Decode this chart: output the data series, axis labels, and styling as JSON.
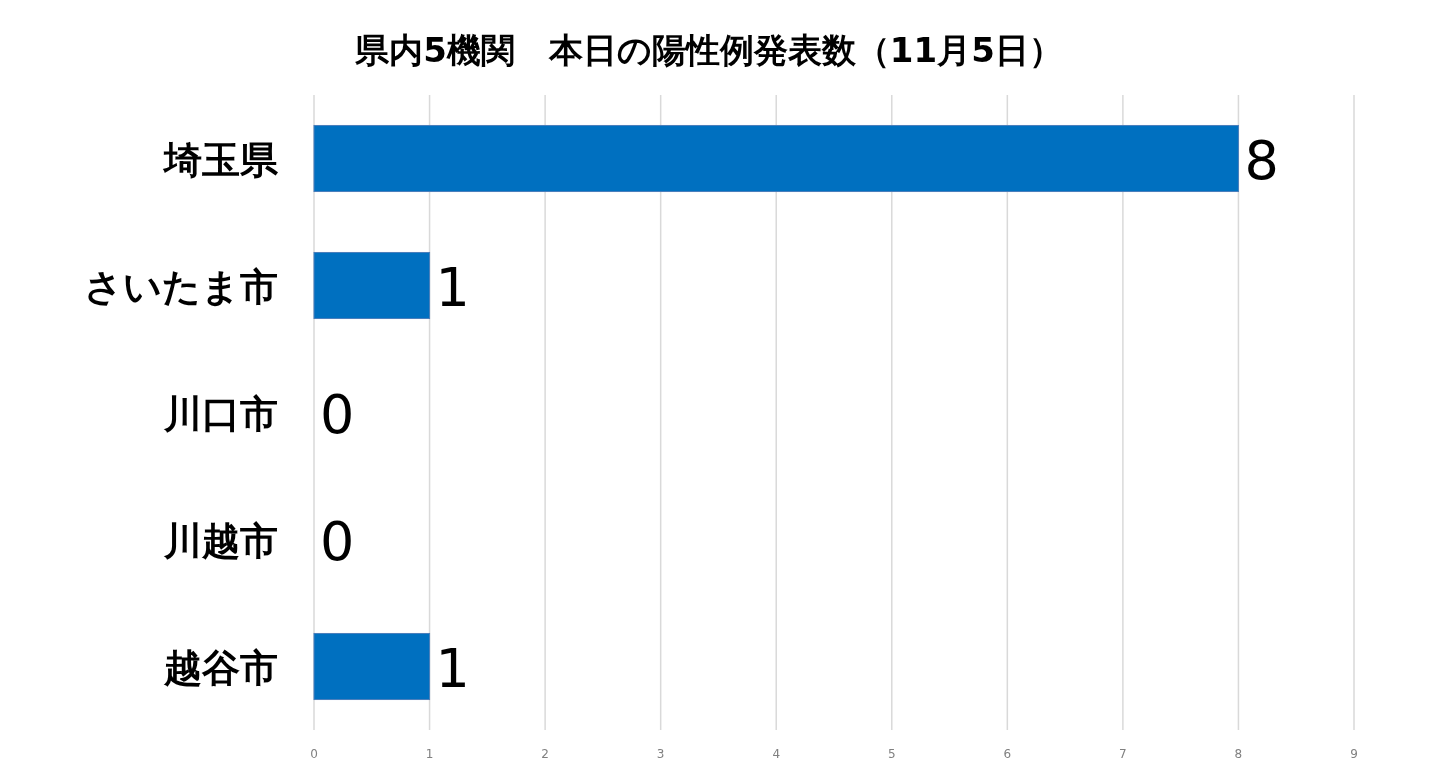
{
  "chart_data": {
    "type": "bar",
    "orientation": "horizontal",
    "title": "県内5機関　本日の陽性例発表数（11月5日）",
    "categories": [
      "埼玉県",
      "さいたま市",
      "川口市",
      "川越市",
      "越谷市"
    ],
    "values": [
      8,
      1,
      0,
      0,
      1
    ],
    "color": "#0070c0",
    "xlim": [
      0,
      9
    ],
    "xticks": [
      0,
      1,
      2,
      3,
      4,
      5,
      6,
      7,
      8,
      9
    ],
    "grid": "x",
    "data_labels": true
  }
}
